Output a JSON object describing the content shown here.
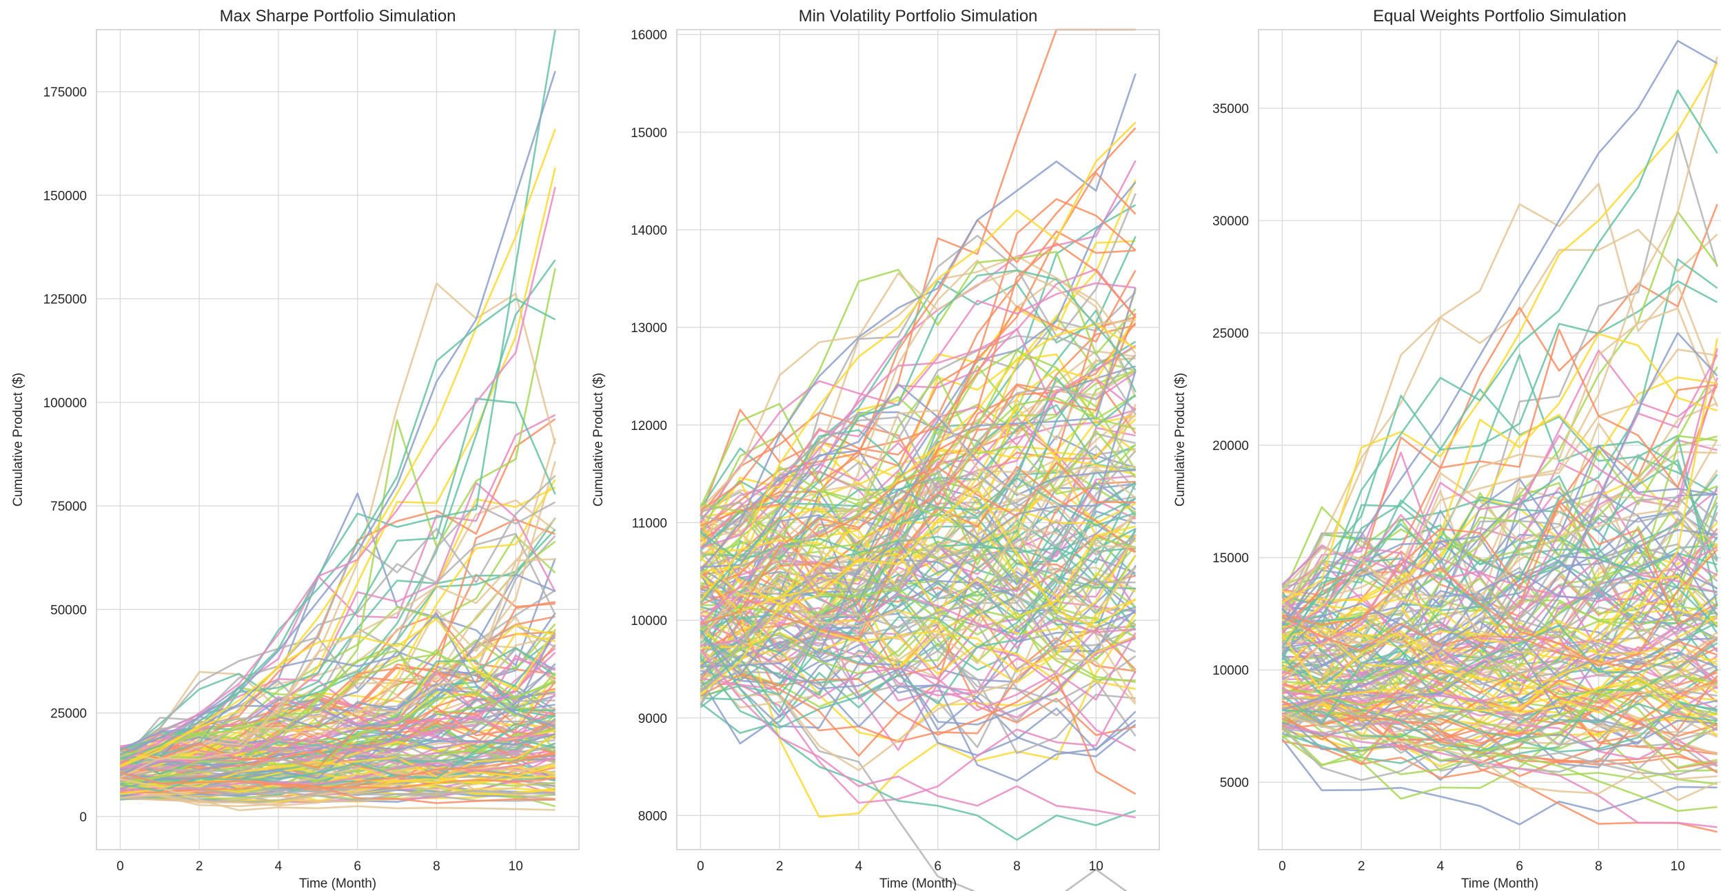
{
  "chart_data": [
    {
      "type": "line",
      "title": "Max Sharpe Portfolio Simulation",
      "xlabel": "Time (Month)",
      "ylabel": "Cumulative Product ($)",
      "x": [
        0,
        1,
        2,
        3,
        4,
        5,
        6,
        7,
        8,
        9,
        10,
        11
      ],
      "xticks": [
        0,
        2,
        4,
        6,
        8,
        10
      ],
      "xlim": [
        -0.6,
        11.6
      ],
      "yticks": [
        0,
        25000,
        50000,
        75000,
        100000,
        125000,
        150000,
        175000
      ],
      "ylim": [
        -8000,
        190000
      ],
      "grid": true,
      "summary": {
        "start_value_range": [
          4000,
          17000
        ],
        "end_value_range": [
          1500,
          180000
        ],
        "end_median": 28000,
        "max_path_end": 180000
      },
      "highlight_paths": [
        [
          15000,
          19000,
          24000,
          30000,
          40000,
          52000,
          64000,
          80000,
          105000,
          120000,
          150000,
          180000
        ],
        [
          12000,
          16000,
          22000,
          28000,
          36000,
          48000,
          62000,
          78000,
          95000,
          118000,
          140000,
          166000
        ],
        [
          14000,
          17000,
          23000,
          30000,
          45000,
          55000,
          66000,
          82000,
          110000,
          118000,
          125000,
          120000
        ],
        [
          13000,
          18000,
          25000,
          32000,
          44000,
          58000,
          62000,
          74000,
          88000,
          100000,
          112000,
          152000
        ],
        [
          9000,
          7000,
          4000,
          1500,
          2200,
          2000,
          2500,
          2000,
          2100,
          2000,
          1800,
          1600
        ]
      ]
    },
    {
      "type": "line",
      "title": "Min Volatility Portfolio Simulation",
      "xlabel": "Time (Month)",
      "ylabel": "Cumulative Product ($)",
      "x": [
        0,
        1,
        2,
        3,
        4,
        5,
        6,
        7,
        8,
        9,
        10,
        11
      ],
      "xticks": [
        0,
        2,
        4,
        6,
        8,
        10
      ],
      "xlim": [
        -0.6,
        11.6
      ],
      "yticks": [
        8000,
        9000,
        10000,
        11000,
        12000,
        13000,
        14000,
        15000,
        16000
      ],
      "ylim": [
        7650,
        16050
      ],
      "grid": true,
      "summary": {
        "start_value_range": [
          9100,
          11200
        ],
        "end_value_range": [
          7950,
          15600
        ],
        "end_median": 11200,
        "max_path_end": 15600
      },
      "highlight_paths": [
        [
          10500,
          11000,
          11900,
          12500,
          12900,
          13200,
          13400,
          14100,
          14400,
          14700,
          14400,
          15600
        ],
        [
          10200,
          10700,
          11600,
          12200,
          12700,
          13000,
          13500,
          13800,
          14200,
          13900,
          14700,
          15100
        ],
        [
          9900,
          9300,
          8800,
          8500,
          8350,
          8150,
          8100,
          8000,
          7750,
          8000,
          7900,
          8050
        ],
        [
          9700,
          9200,
          8800,
          8600,
          8300,
          8400,
          8200,
          8100,
          8300,
          8100,
          8050,
          7980
        ]
      ]
    },
    {
      "type": "line",
      "title": "Equal Weights Portfolio Simulation",
      "xlabel": "Time (Month)",
      "ylabel": "Cumulative Product ($)",
      "x": [
        0,
        1,
        2,
        3,
        4,
        5,
        6,
        7,
        8,
        9,
        10,
        11
      ],
      "xticks": [
        0,
        2,
        4,
        6,
        8,
        10
      ],
      "xlim": [
        -0.6,
        11.6
      ],
      "yticks": [
        5000,
        10000,
        15000,
        20000,
        25000,
        30000,
        35000
      ],
      "ylim": [
        2000,
        38500
      ],
      "grid": true,
      "summary": {
        "start_value_range": [
          6800,
          13800
        ],
        "end_value_range": [
          3000,
          38000
        ],
        "end_median": 12500,
        "max_path_end": 38000
      },
      "highlight_paths": [
        [
          12000,
          14000,
          16000,
          18500,
          21000,
          24000,
          27000,
          30000,
          33000,
          35000,
          38000,
          37000
        ],
        [
          13000,
          14000,
          19900,
          20600,
          19500,
          22000,
          25000,
          28500,
          30000,
          32000,
          34000,
          37000
        ],
        [
          11000,
          13500,
          18000,
          20500,
          23000,
          22000,
          24500,
          26000,
          29000,
          31500,
          35800,
          33000
        ],
        [
          7500,
          7200,
          6800,
          6600,
          6300,
          5900,
          5600,
          5300,
          4400,
          3200,
          3200,
          3000
        ],
        [
          8000,
          7500,
          7000,
          6800,
          6500,
          6000,
          4800,
          4600,
          4500,
          5500,
          4200,
          5000
        ]
      ]
    }
  ],
  "palette": [
    "#66c2a5",
    "#fc8d62",
    "#8da0cb",
    "#e78ac3",
    "#a6d854",
    "#ffd92f",
    "#e5c494",
    "#b3b3b3"
  ]
}
